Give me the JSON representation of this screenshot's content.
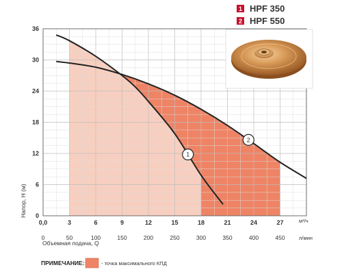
{
  "chart_data": {
    "type": "line",
    "ylabel": "Напор, H (м)",
    "xlabel": "Объемная подача, Q",
    "x_unit": "м³/ч",
    "x2_unit": "л/мин",
    "xlim": [
      0,
      30
    ],
    "ylim": [
      0,
      36
    ],
    "x_ticks": [
      "0,0",
      "3",
      "6",
      "9",
      "12",
      "15",
      "18",
      "21",
      "24",
      "27"
    ],
    "x2_ticks": [
      "0",
      "50",
      "100",
      "150",
      "200",
      "250",
      "300",
      "350",
      "400",
      "450"
    ],
    "y_ticks": [
      "0",
      "6",
      "12",
      "18",
      "24",
      "30",
      "36"
    ],
    "grid": true,
    "series": [
      {
        "name": "HPF 350",
        "marker": "1",
        "color": "#f7cfc0",
        "x": [
          1.5,
          3,
          6,
          9,
          10.5,
          12,
          15,
          18,
          20.5
        ],
        "y": [
          34.8,
          33.7,
          30.7,
          27.0,
          24.8,
          22.0,
          15.8,
          7.8,
          2.2
        ],
        "efficiency_range": [
          3,
          18
        ]
      },
      {
        "name": "HPF 550",
        "marker": "2",
        "color": "#ee8465",
        "x": [
          1.5,
          3,
          6,
          9,
          12,
          15,
          18,
          21,
          24,
          27,
          30
        ],
        "y": [
          29.7,
          29.4,
          28.6,
          27.2,
          25.4,
          23.2,
          20.5,
          17.4,
          13.9,
          10.3,
          7.2
        ],
        "efficiency_range": [
          9,
          27
        ]
      }
    ],
    "legend": [
      {
        "number": "1",
        "label": "HPF 350"
      },
      {
        "number": "2",
        "label": "HPF 550"
      }
    ],
    "legend_position": "top-right",
    "note": {
      "title": "ПРИМЕЧАНИЕ:",
      "text": "- точка максимального КПД"
    }
  },
  "colors": {
    "legend_badge": "#c8102e",
    "zone1": "#f7cfc0",
    "zone2": "#ee8465",
    "curve": "#222222",
    "grid": "#c9c9c9",
    "bronze": "#c98a4a"
  },
  "image": {
    "icon": "impeller-photo"
  }
}
